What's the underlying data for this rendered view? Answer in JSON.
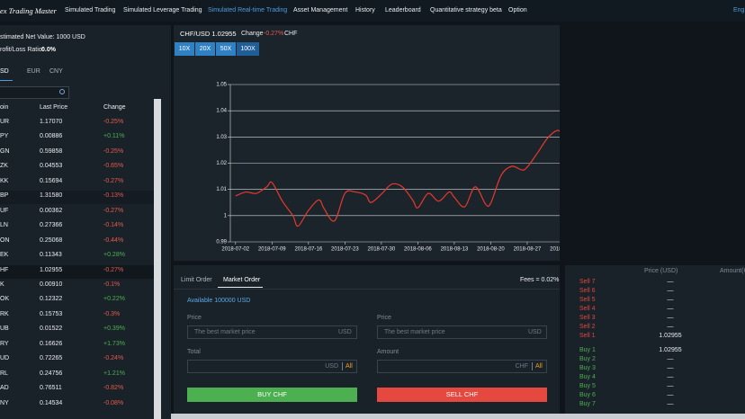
{
  "nav": {
    "brand": "ex Trading Master",
    "items": [
      "Simulated Trading",
      "Simulated Leverage Trading",
      "Simulated Real-time Trading",
      "Asset Management",
      "History",
      "Leaderboard",
      "Quantitative strategy beta",
      "Option"
    ],
    "language": "Engli"
  },
  "account": {
    "net_value": "stimated Net Value: 1000 USD",
    "ratio_label": "rofit/Loss Ratio:",
    "ratio_value": "0.0%"
  },
  "currency_tabs": [
    "SD",
    "EUR",
    "CNY"
  ],
  "market_table": {
    "headers": [
      "oin",
      "Last Price",
      "Change"
    ],
    "rows": [
      [
        "UR",
        "1.17070",
        "-0.25%"
      ],
      [
        "PY",
        "0.00886",
        "+0.11%"
      ],
      [
        "GN",
        "0.59858",
        "-0.25%"
      ],
      [
        "ZK",
        "0.04553",
        "-0.65%"
      ],
      [
        "KK",
        "0.15694",
        "-0.27%"
      ],
      [
        "BP",
        "1.31580",
        "-0.13%"
      ],
      [
        "UF",
        "0.00362",
        "-0.27%"
      ],
      [
        "LN",
        "0.27366",
        "-0.14%"
      ],
      [
        "ON",
        "0.25068",
        "-0.44%"
      ],
      [
        "EK",
        "0.11343",
        "+0.28%"
      ],
      [
        "HF",
        "1.02955",
        "-0.27%"
      ],
      [
        "K",
        "0.00910",
        "-0.1%"
      ],
      [
        "OK",
        "0.12322",
        "+0.22%"
      ],
      [
        "RK",
        "0.15753",
        "-0.3%"
      ],
      [
        "UB",
        "0.01522",
        "+0.39%"
      ],
      [
        "RY",
        "0.16626",
        "+1.73%"
      ],
      [
        "UD",
        "0.72265",
        "-0.24%"
      ],
      [
        "RL",
        "0.24756",
        "+1.21%"
      ],
      [
        "AD",
        "0.76511",
        "-0.82%"
      ],
      [
        "NY",
        "0.14534",
        "-0.08%"
      ]
    ]
  },
  "ticker": {
    "pair": "CHF/USD 1.02955",
    "change_label": "Change",
    "change": "-0.27%",
    "currency": "CHF"
  },
  "leverage": [
    "10X",
    "20X",
    "50X",
    "100X"
  ],
  "chart_data": {
    "type": "line",
    "color": "#e8392b",
    "grid": true,
    "x": [
      "2018-07-02",
      "2018-07-04",
      "2018-07-06",
      "2018-07-08",
      "2018-07-09",
      "2018-07-11",
      "2018-07-13",
      "2018-07-14",
      "2018-07-16",
      "2018-07-18",
      "2018-07-19",
      "2018-07-21",
      "2018-07-23",
      "2018-07-25",
      "2018-07-27",
      "2018-07-28",
      "2018-07-30",
      "2018-08-01",
      "2018-08-03",
      "2018-08-05",
      "2018-08-06",
      "2018-08-08",
      "2018-08-10",
      "2018-08-12",
      "2018-08-13",
      "2018-08-15",
      "2018-08-17",
      "2018-08-19",
      "2018-08-20",
      "2018-08-22",
      "2018-08-24",
      "2018-08-26",
      "2018-08-27",
      "2018-08-29",
      "2018-08-31",
      "2018-09-02",
      "2018-09-03",
      "2018-09-05",
      "2018-09-07",
      "2018-09-08",
      "2018-09-10",
      "2018-09-12",
      "2018-09-14",
      "2018-09-16",
      "2018-09-17",
      "2018-09-19",
      "2018-09-21",
      "2018-09-23",
      "2018-09-24",
      "2018-09-26",
      "2018-09-28",
      "2018-09-29"
    ],
    "values": [
      1.0075,
      1.009,
      1.0085,
      1.011,
      1.0126,
      1.0055,
      1.0,
      0.996,
      1.002,
      1.006,
      1.0027,
      0.998,
      1.0085,
      1.009,
      1.0078,
      1.005,
      1.0082,
      1.012,
      1.011,
      1.006,
      1.003,
      1.0085,
      1.0055,
      1.009,
      1.007,
      1.0034,
      1.011,
      1.0044,
      1.0048,
      1.0154,
      1.0188,
      1.0174,
      1.0185,
      1.024,
      1.0298,
      1.0325,
      1.029,
      1.0274,
      1.0318,
      1.036,
      1.0274,
      1.0274,
      1.0308,
      1.037,
      1.0387,
      1.0397,
      1.0418,
      1.0473,
      1.0425,
      1.0342,
      1.0308,
      1.03
    ],
    "xlim": [
      "2018-07-01",
      "2018-09-29"
    ],
    "xticks": [
      "2018-07-02",
      "2018-07-09",
      "2018-07-16",
      "2018-07-23",
      "2018-07-30",
      "2018-08-06",
      "2018-08-13",
      "2018-08-20",
      "2018-08-27",
      "2018-09-03",
      "2018-09-10",
      "2018-09-17",
      "2018-09-24"
    ],
    "ylim": [
      0.99,
      1.05
    ],
    "yticks": [
      0.99,
      1,
      1.01,
      1.02,
      1.03,
      1.04,
      1.05
    ]
  },
  "order_form": {
    "tabs": [
      "Limit Order",
      "Market Order"
    ],
    "fees": "Fees = 0.02%",
    "available": "Available 100000 USD",
    "buy": {
      "price_label": "Price",
      "placeholder": "The best market price",
      "price_unit": "USD",
      "total_label": "Total",
      "total_unit": "USD",
      "all": "All",
      "button": "BUY CHF"
    },
    "sell": {
      "price_label": "Price",
      "placeholder": "The best market price",
      "price_unit": "USD",
      "amount_label": "Amount",
      "amount_unit": "CHF",
      "all": "All",
      "button": "SELL CHF"
    }
  },
  "order_book": {
    "headers": [
      "Price (USD)",
      "Amount(C"
    ],
    "sells": [
      {
        "label": "Sell 7",
        "price": "—"
      },
      {
        "label": "Sell 6",
        "price": "—"
      },
      {
        "label": "Sell 5",
        "price": "—"
      },
      {
        "label": "Sell 4",
        "price": "—"
      },
      {
        "label": "Sell 3",
        "price": "—"
      },
      {
        "label": "Sell 2",
        "price": "—"
      },
      {
        "label": "Sell 1",
        "price": "1.02955"
      }
    ],
    "buys": [
      {
        "label": "Buy 1",
        "price": "1.02955"
      },
      {
        "label": "Buy 2",
        "price": "—"
      },
      {
        "label": "Buy 3",
        "price": "—"
      },
      {
        "label": "Buy 4",
        "price": "—"
      },
      {
        "label": "Buy 5",
        "price": "—"
      },
      {
        "label": "Buy 6",
        "price": "—"
      },
      {
        "label": "Buy 7",
        "price": "—"
      }
    ]
  }
}
